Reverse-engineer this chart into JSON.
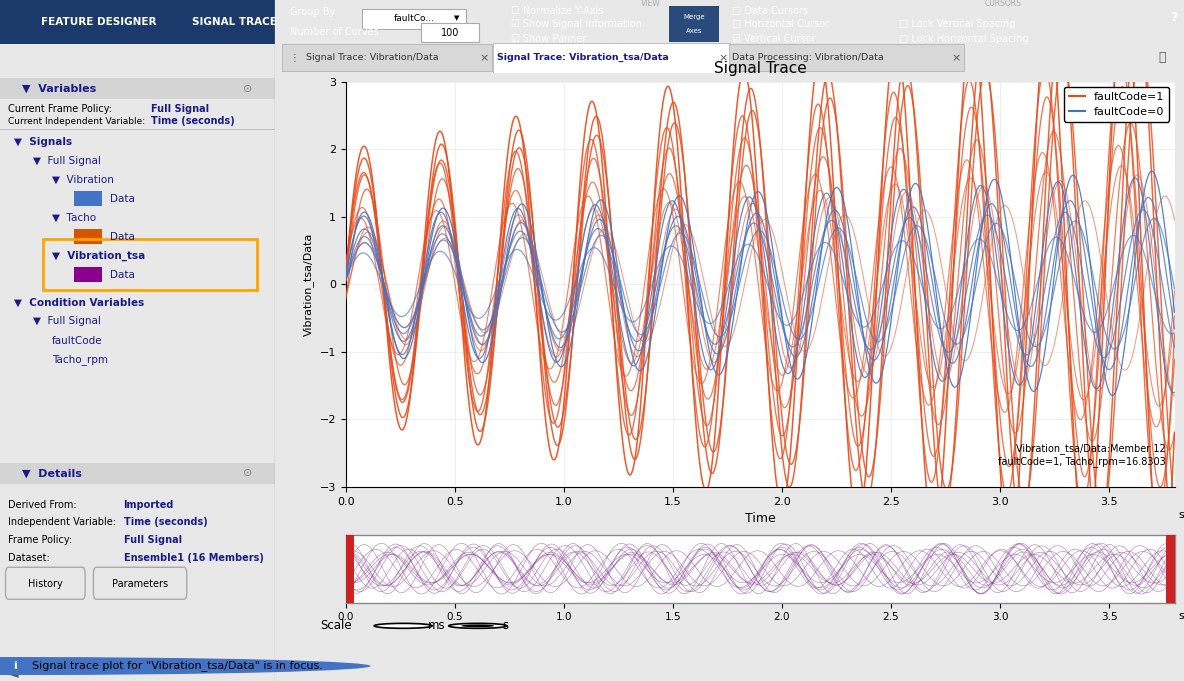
{
  "title": "Signal Trace",
  "ylabel_main": "Vibration_tsa/Data",
  "xlabel_main": "Time",
  "xlabel_unit": "sec",
  "xlim": [
    0,
    3.8
  ],
  "ylim": [
    -3,
    3
  ],
  "yticks": [
    -3,
    -2,
    -1,
    0,
    1,
    2,
    3
  ],
  "xticks": [
    0,
    0.5,
    1,
    1.5,
    2,
    2.5,
    3,
    3.5
  ],
  "color_fault1": "#E84B1A",
  "color_fault0": "#4472C4",
  "color_purple": "#7B2D8B",
  "legend_fault1": "faultCode=1",
  "legend_fault0": "faultCode=0",
  "annotation_text": "Vibration_tsa/Data:Member 12\nfaultCode=1, Tacho_rpm=16.8303",
  "tab1_label": "Signal Trace: Vibration/Data",
  "tab2_label": "Signal Trace: Vibration_tsa/Data",
  "tab3_label": "Data Processing: Vibration/Data",
  "info_bar_text": "Signal trace plot for \"Vibration_tsa/Data\" is in focus.",
  "n_fault1_curves": 10,
  "n_fault0_curves": 6,
  "base_freq": 2.8,
  "scale_label": "Scale",
  "scale_ms": "ms",
  "scale_s": "s"
}
